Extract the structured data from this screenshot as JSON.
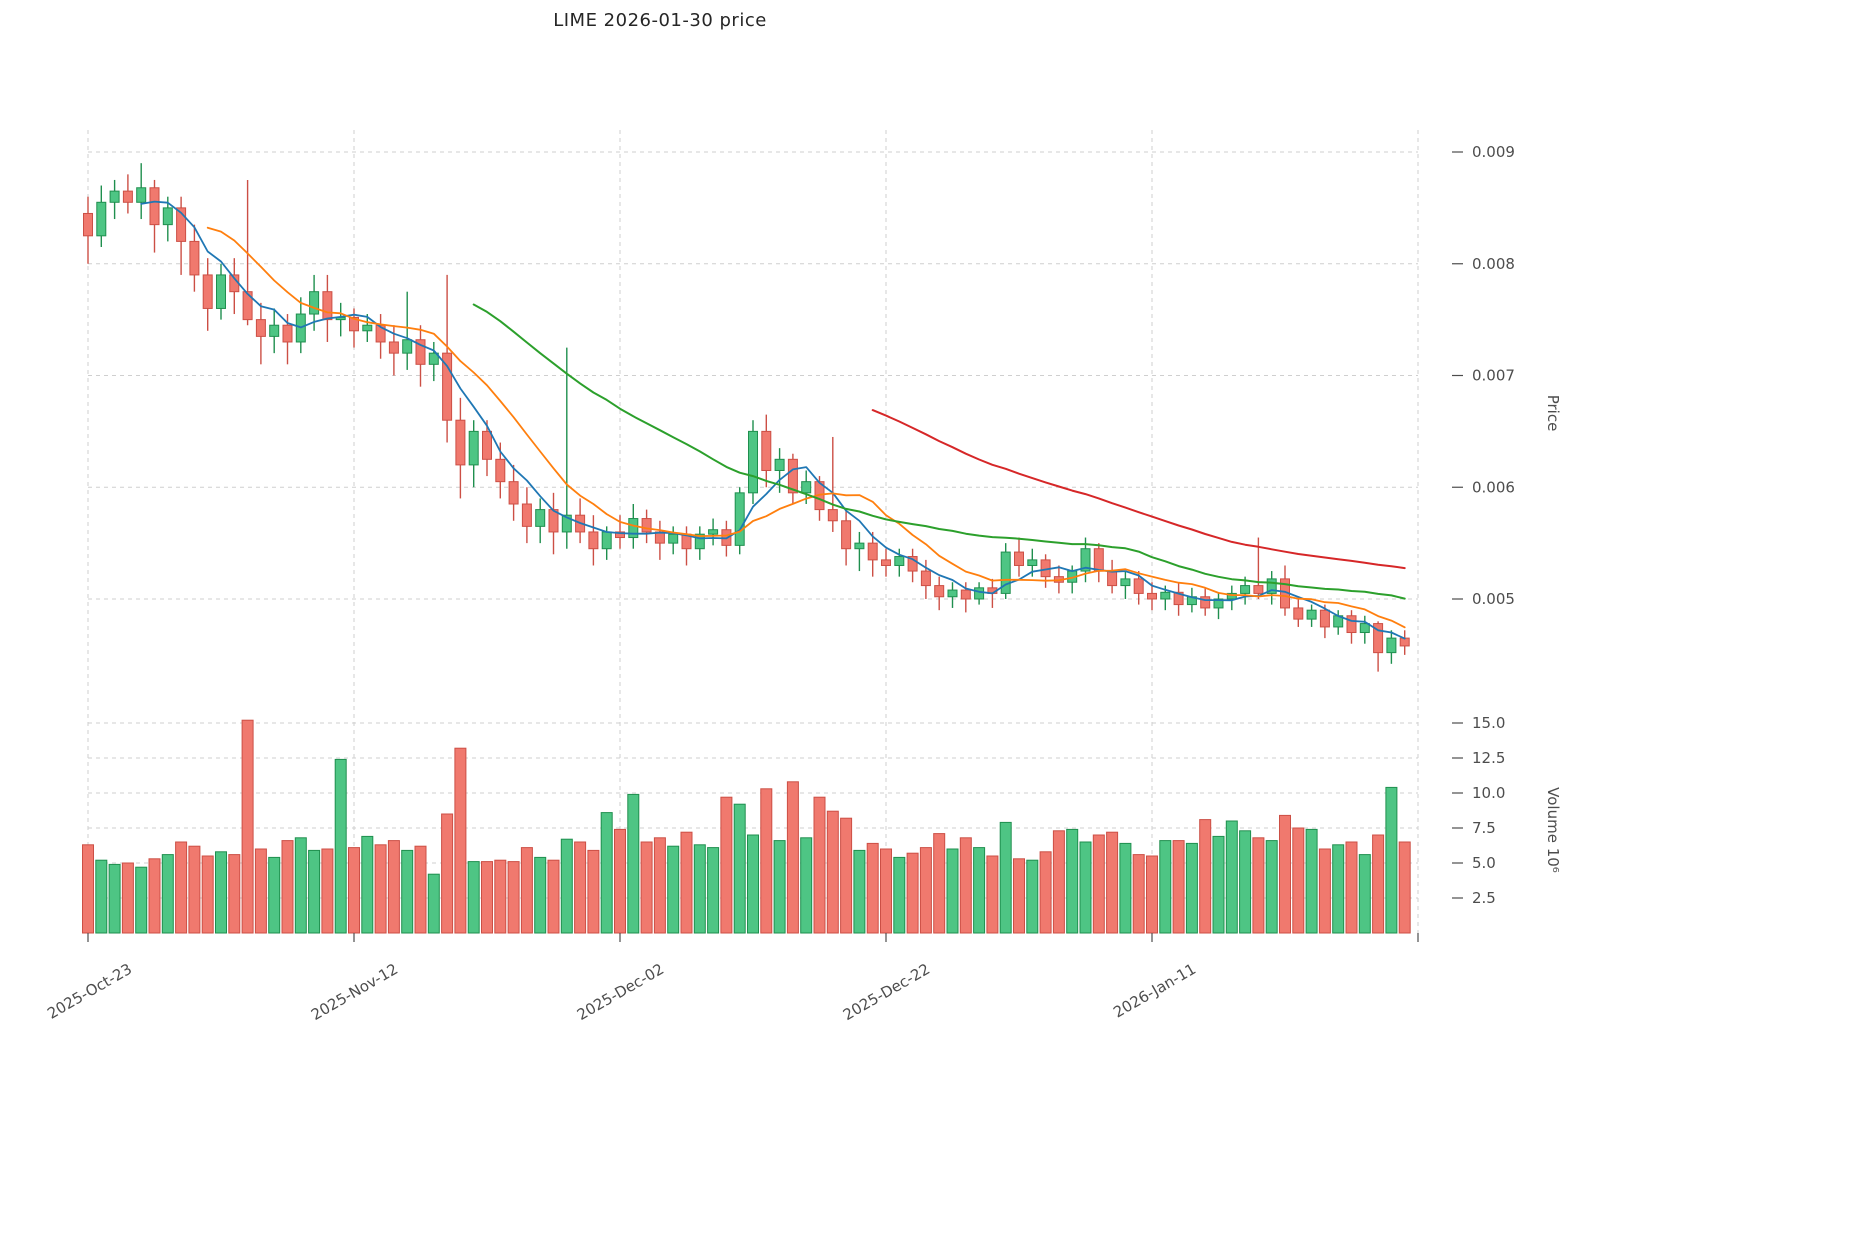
{
  "title": "LIME  2026-01-30  price",
  "chart_data": {
    "type": "candlestick",
    "title": "LIME  2026-01-30  price",
    "price_axis": {
      "label": "Price",
      "tick_labels": [
        "0.009",
        "0.008",
        "0.007",
        "0.006",
        "0.005"
      ],
      "tick_values_milli": [
        9.0,
        8.0,
        7.0,
        6.0,
        5.0
      ],
      "range": [
        0.0043,
        0.0092
      ]
    },
    "volume_axis": {
      "label": "Volume  10⁶",
      "tick_labels": [
        "15.0",
        "12.5",
        "10.0",
        "7.5",
        "5.0",
        "2.5"
      ],
      "tick_values": [
        15.0,
        12.5,
        10.0,
        7.5,
        5.0,
        2.5
      ],
      "unit": 1000000,
      "range": [
        0,
        16
      ]
    },
    "x_axis": {
      "tick_labels": [
        "2025-Oct-23",
        "2025-Nov-12",
        "2025-Dec-02",
        "2025-Dec-22",
        "2026-Jan-11"
      ],
      "tick_indices": [
        0,
        20,
        40,
        60,
        80
      ],
      "n_points": 100,
      "grid": true
    },
    "price_unit_multiplier": 0.001,
    "columns": [
      "open",
      "high",
      "low",
      "close",
      "volume_millions"
    ],
    "candles": [
      [
        8.45,
        8.6,
        8.0,
        8.25,
        6.3
      ],
      [
        8.25,
        8.7,
        8.15,
        8.55,
        5.2
      ],
      [
        8.55,
        8.75,
        8.4,
        8.65,
        4.9
      ],
      [
        8.65,
        8.8,
        8.45,
        8.55,
        5.0
      ],
      [
        8.55,
        8.9,
        8.4,
        8.68,
        4.7
      ],
      [
        8.68,
        8.75,
        8.1,
        8.35,
        5.3
      ],
      [
        8.35,
        8.6,
        8.2,
        8.5,
        5.6
      ],
      [
        8.5,
        8.6,
        7.9,
        8.2,
        6.5
      ],
      [
        8.2,
        8.35,
        7.75,
        7.9,
        6.2
      ],
      [
        7.9,
        8.05,
        7.4,
        7.6,
        5.5
      ],
      [
        7.6,
        8.0,
        7.5,
        7.9,
        5.8
      ],
      [
        7.9,
        8.05,
        7.55,
        7.75,
        5.6
      ],
      [
        7.75,
        8.75,
        7.45,
        7.5,
        15.2
      ],
      [
        7.5,
        7.65,
        7.1,
        7.35,
        6.0
      ],
      [
        7.35,
        7.6,
        7.2,
        7.45,
        5.4
      ],
      [
        7.45,
        7.55,
        7.1,
        7.3,
        6.6
      ],
      [
        7.3,
        7.7,
        7.2,
        7.55,
        6.8
      ],
      [
        7.55,
        7.9,
        7.4,
        7.75,
        5.9
      ],
      [
        7.75,
        7.9,
        7.3,
        7.5,
        6.0
      ],
      [
        7.5,
        7.65,
        7.35,
        7.52,
        12.4
      ],
      [
        7.52,
        7.6,
        7.25,
        7.4,
        6.1
      ],
      [
        7.4,
        7.55,
        7.3,
        7.45,
        6.9
      ],
      [
        7.45,
        7.55,
        7.15,
        7.3,
        6.3
      ],
      [
        7.3,
        7.45,
        7.0,
        7.2,
        6.6
      ],
      [
        7.2,
        7.75,
        7.05,
        7.32,
        5.9
      ],
      [
        7.32,
        7.45,
        6.9,
        7.1,
        6.2
      ],
      [
        7.1,
        7.3,
        6.95,
        7.2,
        4.2
      ],
      [
        7.2,
        7.9,
        6.4,
        6.6,
        8.5
      ],
      [
        6.6,
        6.8,
        5.9,
        6.2,
        13.2
      ],
      [
        6.2,
        6.6,
        6.0,
        6.5,
        5.1
      ],
      [
        6.5,
        6.6,
        6.1,
        6.25,
        5.1
      ],
      [
        6.25,
        6.4,
        5.9,
        6.05,
        5.2
      ],
      [
        6.05,
        6.2,
        5.7,
        5.85,
        5.1
      ],
      [
        5.85,
        6.0,
        5.5,
        5.65,
        6.1
      ],
      [
        5.65,
        5.9,
        5.5,
        5.8,
        5.4
      ],
      [
        5.8,
        5.95,
        5.4,
        5.6,
        5.2
      ],
      [
        5.6,
        7.25,
        5.45,
        5.75,
        6.7
      ],
      [
        5.75,
        5.9,
        5.5,
        5.6,
        6.5
      ],
      [
        5.6,
        5.75,
        5.3,
        5.45,
        5.9
      ],
      [
        5.45,
        5.65,
        5.35,
        5.6,
        8.6
      ],
      [
        5.6,
        5.75,
        5.45,
        5.55,
        7.4
      ],
      [
        5.55,
        5.85,
        5.45,
        5.72,
        9.9
      ],
      [
        5.72,
        5.8,
        5.5,
        5.6,
        6.5
      ],
      [
        5.6,
        5.7,
        5.35,
        5.5,
        6.8
      ],
      [
        5.5,
        5.65,
        5.4,
        5.58,
        6.2
      ],
      [
        5.58,
        5.65,
        5.3,
        5.45,
        7.2
      ],
      [
        5.45,
        5.65,
        5.35,
        5.58,
        6.3
      ],
      [
        5.58,
        5.72,
        5.48,
        5.62,
        6.1
      ],
      [
        5.62,
        5.7,
        5.38,
        5.48,
        9.7
      ],
      [
        5.48,
        6.0,
        5.4,
        5.95,
        9.2
      ],
      [
        5.95,
        6.6,
        5.85,
        6.5,
        7.0
      ],
      [
        6.5,
        6.65,
        6.0,
        6.15,
        10.3
      ],
      [
        6.15,
        6.35,
        5.95,
        6.25,
        6.6
      ],
      [
        6.25,
        6.3,
        5.85,
        5.95,
        10.8
      ],
      [
        5.95,
        6.15,
        5.85,
        6.05,
        6.8
      ],
      [
        6.05,
        6.1,
        5.7,
        5.8,
        9.7
      ],
      [
        5.8,
        6.45,
        5.6,
        5.7,
        8.7
      ],
      [
        5.7,
        5.8,
        5.3,
        5.45,
        8.2
      ],
      [
        5.45,
        5.6,
        5.25,
        5.5,
        5.9
      ],
      [
        5.5,
        5.6,
        5.2,
        5.35,
        6.4
      ],
      [
        5.35,
        5.45,
        5.2,
        5.3,
        6.0
      ],
      [
        5.3,
        5.45,
        5.2,
        5.38,
        5.4
      ],
      [
        5.38,
        5.45,
        5.15,
        5.25,
        5.7
      ],
      [
        5.25,
        5.35,
        5.0,
        5.12,
        6.1
      ],
      [
        5.12,
        5.2,
        4.9,
        5.02,
        7.1
      ],
      [
        5.02,
        5.15,
        4.92,
        5.08,
        6.0
      ],
      [
        5.08,
        5.15,
        4.88,
        5.0,
        6.8
      ],
      [
        5.0,
        5.15,
        4.95,
        5.1,
        6.1
      ],
      [
        5.1,
        5.18,
        4.92,
        5.05,
        5.5
      ],
      [
        5.05,
        5.5,
        5.0,
        5.42,
        7.9
      ],
      [
        5.42,
        5.55,
        5.2,
        5.3,
        5.3
      ],
      [
        5.3,
        5.45,
        5.2,
        5.35,
        5.2
      ],
      [
        5.35,
        5.4,
        5.1,
        5.2,
        5.8
      ],
      [
        5.2,
        5.3,
        5.05,
        5.15,
        7.3
      ],
      [
        5.15,
        5.3,
        5.05,
        5.25,
        7.4
      ],
      [
        5.25,
        5.55,
        5.15,
        5.45,
        6.5
      ],
      [
        5.45,
        5.5,
        5.15,
        5.25,
        7.0
      ],
      [
        5.25,
        5.35,
        5.05,
        5.12,
        7.2
      ],
      [
        5.12,
        5.25,
        5.0,
        5.18,
        6.4
      ],
      [
        5.18,
        5.25,
        4.95,
        5.05,
        5.6
      ],
      [
        5.05,
        5.15,
        4.9,
        5.0,
        5.5
      ],
      [
        5.0,
        5.12,
        4.9,
        5.06,
        6.6
      ],
      [
        5.06,
        5.15,
        4.85,
        4.95,
        6.6
      ],
      [
        4.95,
        5.1,
        4.88,
        5.02,
        6.4
      ],
      [
        5.02,
        5.1,
        4.85,
        4.92,
        8.1
      ],
      [
        4.92,
        5.05,
        4.82,
        5.0,
        6.9
      ],
      [
        5.0,
        5.12,
        4.9,
        5.05,
        8.0
      ],
      [
        5.05,
        5.2,
        4.95,
        5.12,
        7.3
      ],
      [
        5.12,
        5.55,
        5.0,
        5.05,
        6.8
      ],
      [
        5.05,
        5.25,
        4.95,
        5.18,
        6.6
      ],
      [
        5.18,
        5.3,
        4.85,
        4.92,
        8.4
      ],
      [
        4.92,
        5.0,
        4.75,
        4.82,
        7.5
      ],
      [
        4.82,
        4.95,
        4.75,
        4.9,
        7.4
      ],
      [
        4.9,
        4.95,
        4.65,
        4.75,
        6.0
      ],
      [
        4.75,
        4.9,
        4.68,
        4.85,
        6.3
      ],
      [
        4.85,
        4.9,
        4.6,
        4.7,
        6.5
      ],
      [
        4.7,
        4.85,
        4.6,
        4.78,
        5.6
      ],
      [
        4.78,
        4.8,
        4.35,
        4.52,
        7.0
      ],
      [
        4.52,
        4.72,
        4.42,
        4.65,
        10.4
      ],
      [
        4.65,
        4.72,
        4.5,
        4.58,
        6.5
      ]
    ],
    "moving_averages": [
      {
        "name": "ma-5",
        "period": 5,
        "color": "#1f77b4",
        "width": 1.8
      },
      {
        "name": "ma-10",
        "period": 10,
        "color": "#ff7f0e",
        "width": 1.8
      },
      {
        "name": "ma-30",
        "period": 30,
        "color": "#2ca02c",
        "width": 2.0
      },
      {
        "name": "ma-60",
        "period": 60,
        "color": "#d62728",
        "width": 2.0
      }
    ],
    "colors": {
      "up_fill": "#4ec584",
      "up_stroke": "#1f8f4e",
      "down_fill": "#f0796e",
      "down_stroke": "#cc4f45",
      "grid": "#cfcfcf",
      "axis_text": "#4d4d4d",
      "background": "#ffffff"
    },
    "legend": "none"
  }
}
